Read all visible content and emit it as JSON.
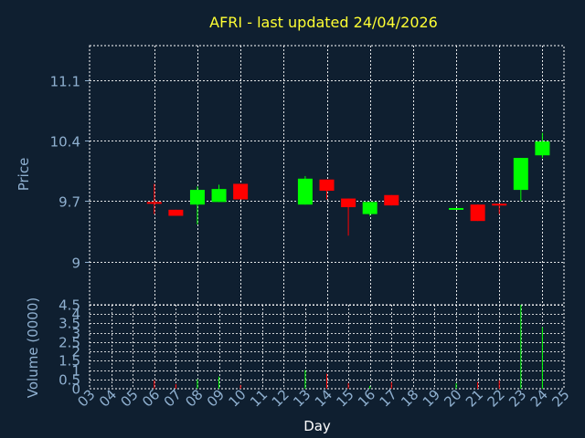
{
  "title": "AFRI - last updated 24/04/2026",
  "colors": {
    "background": "#0f1f30",
    "title": "#ffff33",
    "axis_text": "#8fb0d0",
    "grid": "#ffffff",
    "up": "#00ff00",
    "down": "#ff0000"
  },
  "chart_data": [
    {
      "type": "candlestick",
      "title": "AFRI - last updated 24/04/2026",
      "ylabel": "Price",
      "ylim": [
        8.5,
        11.5
      ],
      "yticks": [
        9,
        9.7,
        10.4,
        11.1
      ],
      "ytick_labels": [
        "9",
        "9.7",
        "10.4",
        "11.1"
      ],
      "x_domain": [
        3,
        25
      ],
      "grid": true,
      "candles": [
        {
          "day": 6,
          "open": 9.69,
          "close": 9.67,
          "high": 9.9,
          "low": 9.55
        },
        {
          "day": 7,
          "open": 9.6,
          "close": 9.53,
          "high": 9.6,
          "low": 9.53
        },
        {
          "day": 8,
          "open": 9.66,
          "close": 9.83,
          "high": 9.87,
          "low": 9.43
        },
        {
          "day": 9,
          "open": 9.69,
          "close": 9.84,
          "high": 9.89,
          "low": 9.69
        },
        {
          "day": 10,
          "open": 9.9,
          "close": 9.72,
          "high": 9.9,
          "low": 9.72
        },
        {
          "day": 13,
          "open": 9.66,
          "close": 9.96,
          "high": 9.99,
          "low": 9.66
        },
        {
          "day": 14,
          "open": 9.95,
          "close": 9.82,
          "high": 9.95,
          "low": 9.72
        },
        {
          "day": 15,
          "open": 9.73,
          "close": 9.63,
          "high": 9.73,
          "low": 9.3
        },
        {
          "day": 16,
          "open": 9.55,
          "close": 9.69,
          "high": 9.69,
          "low": 9.53
        },
        {
          "day": 17,
          "open": 9.77,
          "close": 9.65,
          "high": 9.77,
          "low": 9.65
        },
        {
          "day": 20,
          "open": 9.6,
          "close": 9.62,
          "high": 9.62,
          "low": 9.6
        },
        {
          "day": 21,
          "open": 9.66,
          "close": 9.47,
          "high": 9.66,
          "low": 9.47
        },
        {
          "day": 22,
          "open": 9.67,
          "close": 9.65,
          "high": 9.67,
          "low": 9.55
        },
        {
          "day": 23,
          "open": 9.83,
          "close": 10.2,
          "high": 10.2,
          "low": 9.7
        },
        {
          "day": 24,
          "open": 10.23,
          "close": 10.39,
          "high": 10.49,
          "low": 10.2
        }
      ]
    },
    {
      "type": "bar",
      "ylabel": "Volume (0000)",
      "xlabel": "Day",
      "ylim": [
        0,
        4.5
      ],
      "yticks": [
        0,
        0.5,
        1,
        1.5,
        2,
        2.5,
        3,
        3.5,
        4,
        4.5
      ],
      "ytick_labels": [
        "0",
        "0.5",
        "1",
        "1.5",
        "2",
        "2.5",
        "3",
        "3.5",
        "4",
        "4.5"
      ],
      "categories": [
        "03",
        "04",
        "05",
        "06",
        "07",
        "08",
        "09",
        "10",
        "11",
        "12",
        "13",
        "14",
        "15",
        "16",
        "17",
        "18",
        "19",
        "20",
        "21",
        "22",
        "23",
        "24",
        "25"
      ],
      "bars": [
        {
          "day": 6,
          "value": 0.45,
          "direction": "down"
        },
        {
          "day": 7,
          "value": 0.25,
          "direction": "down"
        },
        {
          "day": 8,
          "value": 0.5,
          "direction": "up"
        },
        {
          "day": 9,
          "value": 0.65,
          "direction": "up"
        },
        {
          "day": 10,
          "value": 0.2,
          "direction": "down"
        },
        {
          "day": 13,
          "value": 1.0,
          "direction": "up"
        },
        {
          "day": 14,
          "value": 0.8,
          "direction": "down"
        },
        {
          "day": 15,
          "value": 0.3,
          "direction": "down"
        },
        {
          "day": 16,
          "value": 0.15,
          "direction": "up"
        },
        {
          "day": 17,
          "value": 0.35,
          "direction": "down"
        },
        {
          "day": 20,
          "value": 0.3,
          "direction": "up"
        },
        {
          "day": 21,
          "value": 0.35,
          "direction": "down"
        },
        {
          "day": 22,
          "value": 0.45,
          "direction": "down"
        },
        {
          "day": 23,
          "value": 4.5,
          "direction": "up"
        },
        {
          "day": 24,
          "value": 3.3,
          "direction": "up"
        }
      ]
    }
  ]
}
